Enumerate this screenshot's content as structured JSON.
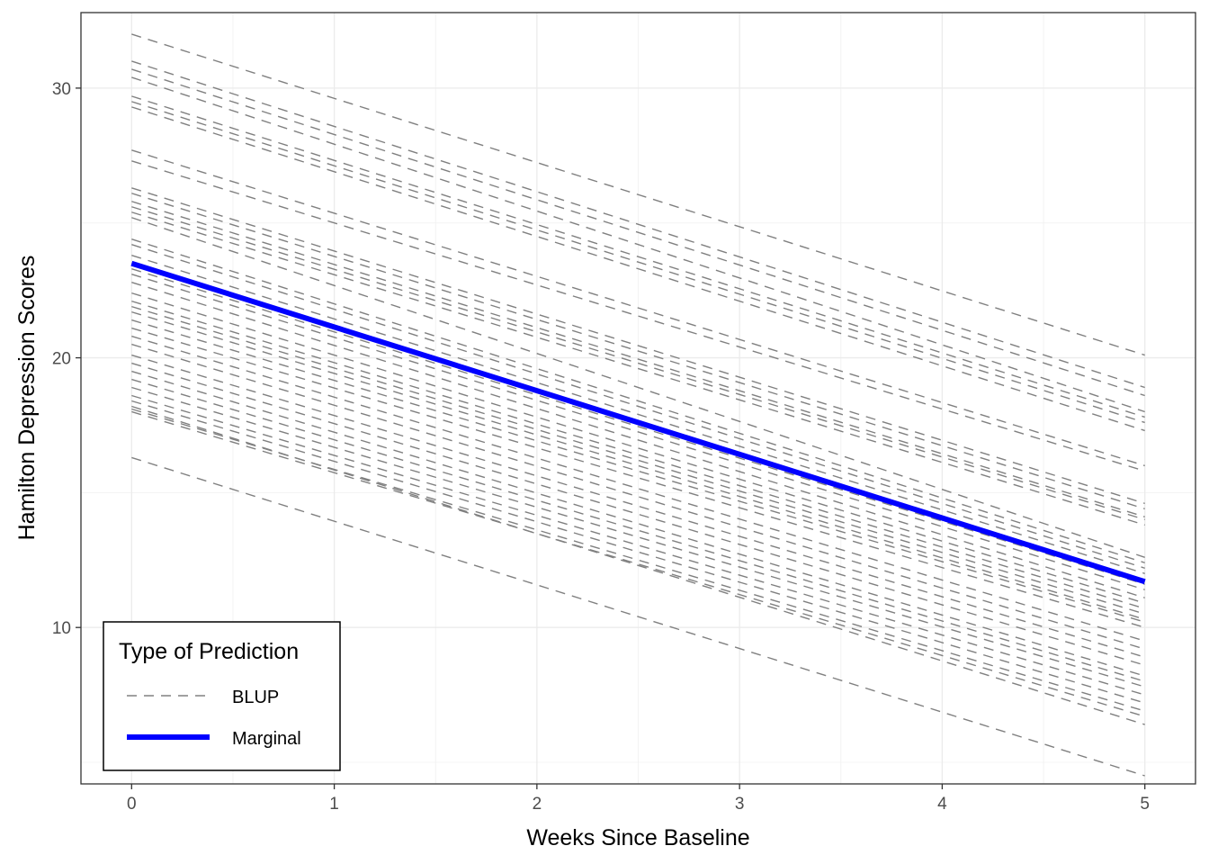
{
  "chart_data": {
    "type": "line",
    "xlabel": "Weeks Since Baseline",
    "ylabel": "Hamilton Depression Scores",
    "xlim": [
      -0.25,
      5.25
    ],
    "ylim": [
      4.2,
      32.8
    ],
    "x_ticks": [
      "0",
      "1",
      "2",
      "3",
      "4",
      "5"
    ],
    "y_ticks": [
      "10",
      "20",
      "30"
    ],
    "grid": true,
    "legend": {
      "title": "Type of Prediction",
      "position": "bottom-left",
      "entries": [
        {
          "label": "BLUP",
          "style": "dashed",
          "color": "#808080"
        },
        {
          "label": "Marginal",
          "style": "solid",
          "color": "#0000ff"
        }
      ]
    },
    "x": [
      0,
      5
    ],
    "marginal": {
      "name": "Marginal",
      "color": "#0000ff",
      "values": [
        23.5,
        11.7
      ]
    },
    "blup": {
      "name": "BLUP",
      "color": "#808080",
      "lines": [
        [
          32.0,
          20.1
        ],
        [
          31.0,
          18.9
        ],
        [
          30.7,
          18.6
        ],
        [
          30.4,
          18.0
        ],
        [
          29.7,
          17.8
        ],
        [
          29.5,
          17.6
        ],
        [
          29.3,
          17.3
        ],
        [
          27.7,
          16.0
        ],
        [
          27.3,
          15.8
        ],
        [
          26.3,
          14.6
        ],
        [
          26.1,
          14.4
        ],
        [
          25.8,
          14.1
        ],
        [
          25.6,
          14.0
        ],
        [
          25.4,
          13.8
        ],
        [
          25.2,
          12.6
        ],
        [
          24.4,
          12.4
        ],
        [
          24.2,
          12.2
        ],
        [
          23.8,
          12.0
        ],
        [
          23.3,
          11.6
        ],
        [
          23.1,
          11.4
        ],
        [
          22.8,
          11.1
        ],
        [
          22.4,
          10.9
        ],
        [
          22.1,
          10.7
        ],
        [
          21.9,
          10.5
        ],
        [
          21.7,
          10.3
        ],
        [
          21.4,
          10.2
        ],
        [
          21.1,
          10.0
        ],
        [
          20.8,
          9.5
        ],
        [
          20.5,
          9.2
        ],
        [
          20.1,
          8.9
        ],
        [
          19.8,
          8.6
        ],
        [
          19.5,
          8.2
        ],
        [
          19.2,
          8.0
        ],
        [
          18.9,
          7.8
        ],
        [
          18.6,
          7.5
        ],
        [
          18.4,
          7.2
        ],
        [
          18.1,
          6.9
        ],
        [
          18.0,
          6.7
        ],
        [
          18.2,
          6.4
        ],
        [
          16.3,
          4.5
        ]
      ]
    }
  }
}
